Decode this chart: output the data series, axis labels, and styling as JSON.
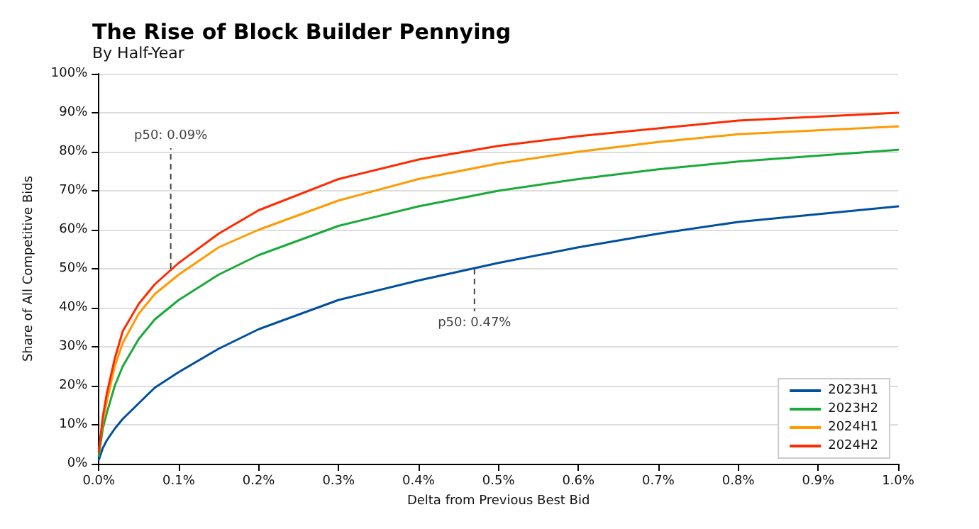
{
  "chart_data": {
    "type": "line",
    "title": "The Rise of Block Builder Pennying",
    "subtitle": "By Half-Year",
    "xlabel": "Delta from Previous Best Bid",
    "ylabel": "Share of All Competitive Bids",
    "x": [
      0,
      0.005,
      0.01,
      0.02,
      0.03,
      0.05,
      0.07,
      0.1,
      0.15,
      0.2,
      0.3,
      0.4,
      0.5,
      0.6,
      0.7,
      0.8,
      0.9,
      1.0
    ],
    "series": [
      {
        "name": "2023H1",
        "color": "#0050a0",
        "values": [
          1,
          4,
          6,
          9,
          11.5,
          15.5,
          19.5,
          23.5,
          29.5,
          34.5,
          42,
          47,
          51.5,
          55.5,
          59,
          62,
          64,
          66
        ]
      },
      {
        "name": "2023H2",
        "color": "#1aaa3a",
        "values": [
          2,
          9,
          13,
          20,
          25,
          32,
          37,
          42,
          48.5,
          53.5,
          61,
          66,
          70,
          73,
          75.5,
          77.5,
          79,
          80.5
        ]
      },
      {
        "name": "2024H1",
        "color": "#ff9a00",
        "values": [
          3,
          11,
          16,
          25,
          31,
          38.5,
          43.5,
          48.5,
          55.5,
          60,
          67.5,
          73,
          77,
          80,
          82.5,
          84.5,
          85.5,
          86.5
        ]
      },
      {
        "name": "2024H2",
        "color": "#ff2a00",
        "values": [
          3,
          12,
          18,
          27,
          34,
          41,
          46,
          51.5,
          59,
          65,
          73,
          78,
          81.5,
          84,
          86,
          88,
          89,
          90
        ]
      }
    ],
    "annotations": [
      {
        "text": "p50: 0.09%",
        "x": 0.09,
        "y": 50
      },
      {
        "text": "p50: 0.47%",
        "x": 0.47,
        "y": 50
      }
    ],
    "xlim": [
      0,
      1
    ],
    "ylim": [
      0,
      100
    ],
    "xticks": [
      {
        "value": 0,
        "label": "0.0%"
      },
      {
        "value": 0.1,
        "label": "0.1%"
      },
      {
        "value": 0.2,
        "label": "0.2%"
      },
      {
        "value": 0.3,
        "label": "0.3%"
      },
      {
        "value": 0.4,
        "label": "0.4%"
      },
      {
        "value": 0.5,
        "label": "0.5%"
      },
      {
        "value": 0.6,
        "label": "0.6%"
      },
      {
        "value": 0.7,
        "label": "0.7%"
      },
      {
        "value": 0.8,
        "label": "0.8%"
      },
      {
        "value": 0.9,
        "label": "0.9%"
      },
      {
        "value": 1,
        "label": "1.0%"
      }
    ],
    "yticks": [
      {
        "value": 0,
        "label": "0%"
      },
      {
        "value": 10,
        "label": "10%"
      },
      {
        "value": 20,
        "label": "20%"
      },
      {
        "value": 30,
        "label": "30%"
      },
      {
        "value": 40,
        "label": "40%"
      },
      {
        "value": 50,
        "label": "50%"
      },
      {
        "value": 60,
        "label": "60%"
      },
      {
        "value": 70,
        "label": "70%"
      },
      {
        "value": 80,
        "label": "80%"
      },
      {
        "value": 90,
        "label": "90%"
      },
      {
        "value": 100,
        "label": "100%"
      }
    ],
    "grid": "y",
    "legend": "bottom right",
    "marker": "none",
    "line_style": "solid"
  }
}
